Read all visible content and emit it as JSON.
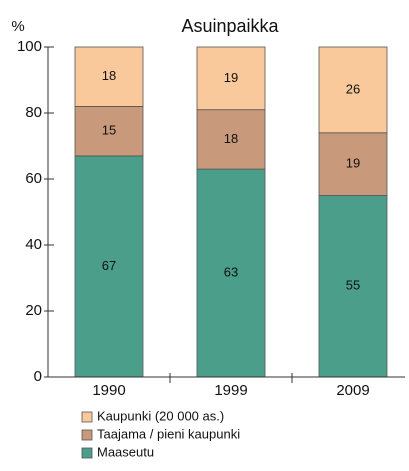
{
  "chart_data": {
    "type": "stacked_bar",
    "title": "Asuinpaikka",
    "y_label": "%",
    "categories": [
      "1990",
      "1999",
      "2009"
    ],
    "series": [
      {
        "name": "Maaseutu",
        "color": "#4a9e8a",
        "values": [
          67,
          63,
          55
        ]
      },
      {
        "name": "Taajama / pieni kaupunki",
        "color": "#c9997b",
        "values": [
          15,
          18,
          19
        ]
      },
      {
        "name": "Kaupunki (20 000 as.)",
        "color": "#f9c99b",
        "values": [
          18,
          19,
          26
        ]
      }
    ],
    "ylim": [
      0,
      100
    ],
    "yticks": [
      0,
      20,
      40,
      60,
      80,
      100
    ]
  }
}
